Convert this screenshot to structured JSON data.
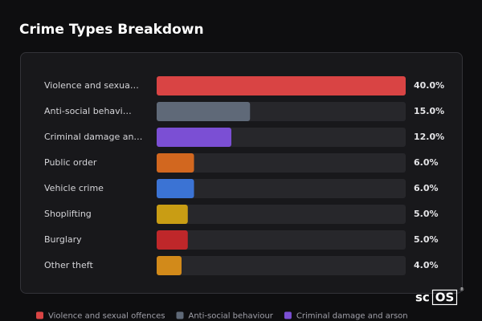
{
  "chart_data": {
    "type": "bar",
    "orientation": "horizontal",
    "title": "Crime Types Breakdown",
    "categories": [
      "Violence and sexua…",
      "Anti-social behavi…",
      "Criminal damage an…",
      "Public order",
      "Vehicle crime",
      "Shoplifting",
      "Burglary",
      "Other theft"
    ],
    "values": [
      40.0,
      15.0,
      12.0,
      6.0,
      6.0,
      5.0,
      5.0,
      4.0
    ],
    "value_labels": [
      "40.0%",
      "15.0%",
      "12.0%",
      "6.0%",
      "6.0%",
      "5.0%",
      "5.0%",
      "4.0%"
    ],
    "colors": [
      "#d94444",
      "#5f6978",
      "#7b4fd4",
      "#d2671f",
      "#3b73d4",
      "#c99d14",
      "#bf272a",
      "#d28a1a"
    ],
    "xlim": [
      0,
      40
    ],
    "legend": [
      {
        "name": "Violence and sexual offences",
        "color": "#d94444"
      },
      {
        "name": "Anti-social behaviour",
        "color": "#5f6978"
      },
      {
        "name": "Criminal damage and arson",
        "color": "#7b4fd4"
      }
    ]
  },
  "logo": {
    "prefix": "sc",
    "boxed": "OS",
    "mark": "®"
  }
}
